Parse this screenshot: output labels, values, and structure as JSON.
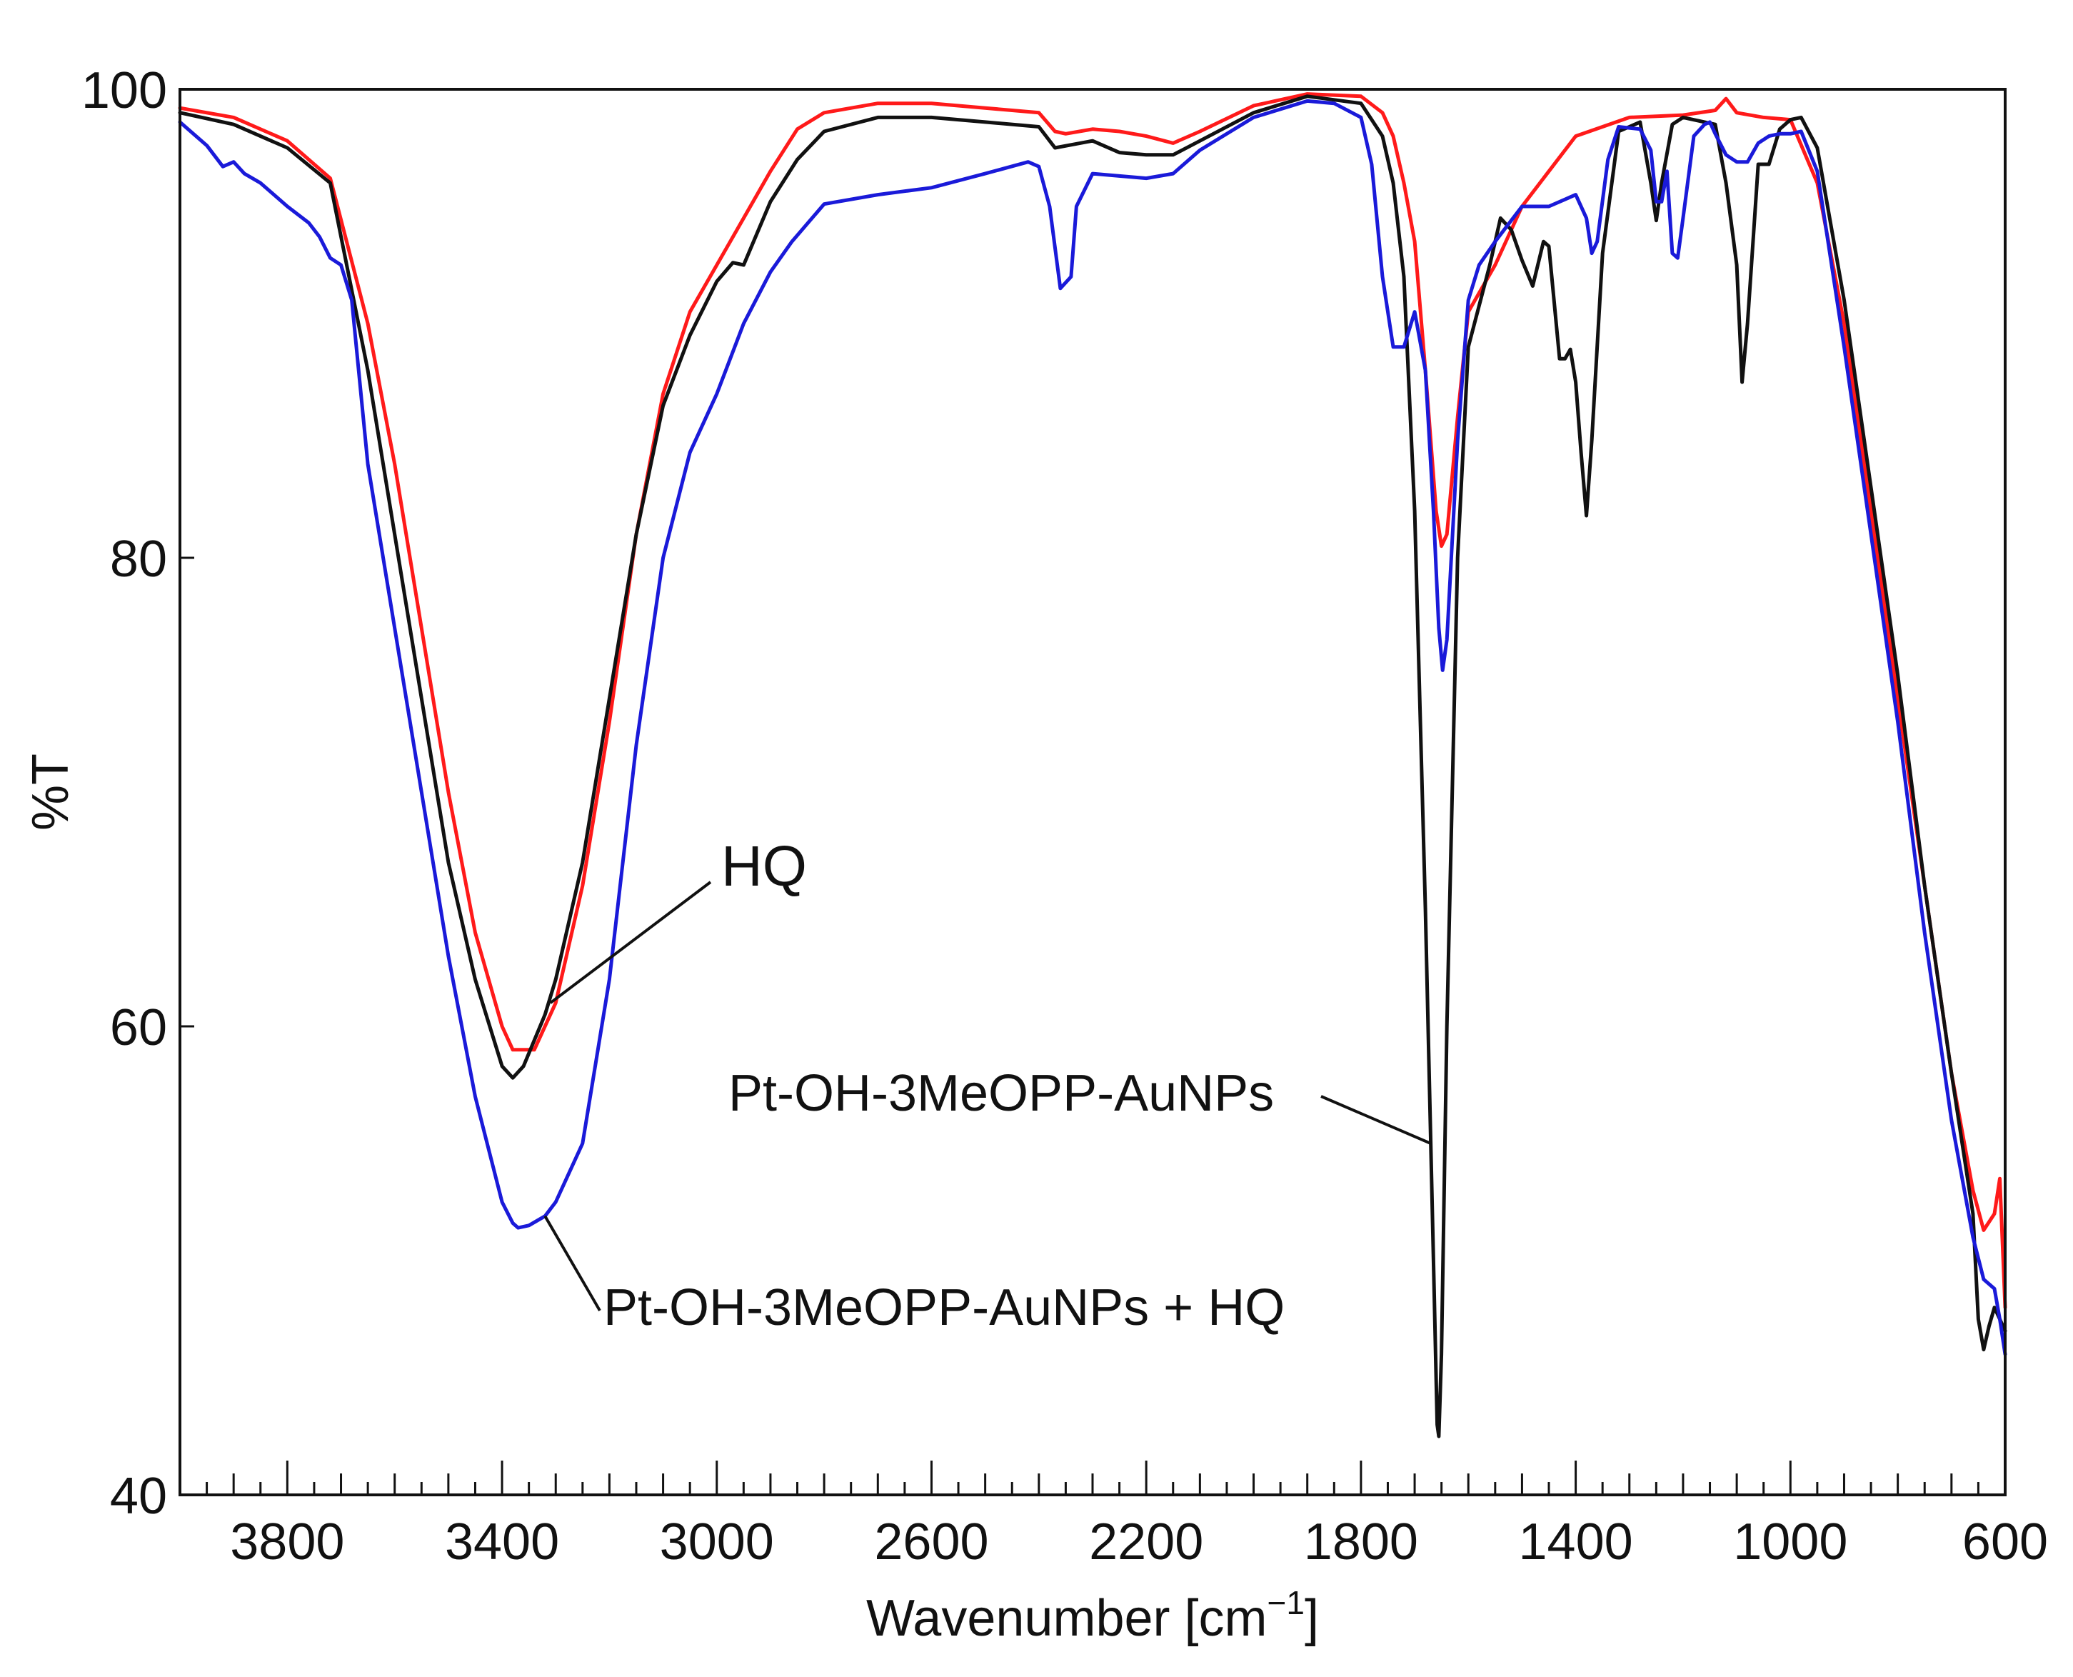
{
  "chart_data": {
    "type": "line",
    "title": "",
    "xlabel": "Wavenumber [cm",
    "xlabel_sup": "−1",
    "xlabel_close": "]",
    "ylabel": "%T",
    "xlim": [
      4000,
      600
    ],
    "ylim": [
      40,
      100
    ],
    "x_ticks": [
      3800,
      3400,
      3000,
      2600,
      2200,
      1800,
      1400,
      1000,
      600
    ],
    "y_ticks": [
      40,
      60,
      80,
      100
    ],
    "series": [
      {
        "name": "HQ",
        "color": "#ff1a1a",
        "points": [
          [
            4000,
            99.2
          ],
          [
            3900,
            98.8
          ],
          [
            3800,
            97.8
          ],
          [
            3720,
            96.2
          ],
          [
            3650,
            90
          ],
          [
            3600,
            84
          ],
          [
            3550,
            77
          ],
          [
            3500,
            70
          ],
          [
            3450,
            64
          ],
          [
            3400,
            60
          ],
          [
            3380,
            59
          ],
          [
            3340,
            59
          ],
          [
            3300,
            61
          ],
          [
            3250,
            66
          ],
          [
            3200,
            73
          ],
          [
            3150,
            81
          ],
          [
            3100,
            87
          ],
          [
            3050,
            90.5
          ],
          [
            3000,
            92.5
          ],
          [
            2950,
            94.5
          ],
          [
            2900,
            96.5
          ],
          [
            2850,
            98.3
          ],
          [
            2800,
            99
          ],
          [
            2700,
            99.4
          ],
          [
            2600,
            99.4
          ],
          [
            2500,
            99.2
          ],
          [
            2400,
            99
          ],
          [
            2370,
            98.2
          ],
          [
            2350,
            98.1
          ],
          [
            2300,
            98.3
          ],
          [
            2250,
            98.2
          ],
          [
            2200,
            98
          ],
          [
            2150,
            97.7
          ],
          [
            2100,
            98.2
          ],
          [
            2000,
            99.3
          ],
          [
            1900,
            99.8
          ],
          [
            1800,
            99.7
          ],
          [
            1760,
            99
          ],
          [
            1740,
            98
          ],
          [
            1720,
            96
          ],
          [
            1700,
            93.5
          ],
          [
            1680,
            88
          ],
          [
            1660,
            82
          ],
          [
            1650,
            80.5
          ],
          [
            1640,
            81
          ],
          [
            1620,
            86
          ],
          [
            1600,
            90.5
          ],
          [
            1550,
            92.5
          ],
          [
            1500,
            95
          ],
          [
            1450,
            96.5
          ],
          [
            1400,
            98
          ],
          [
            1300,
            98.8
          ],
          [
            1200,
            98.9
          ],
          [
            1140,
            99.1
          ],
          [
            1120,
            99.6
          ],
          [
            1100,
            99
          ],
          [
            1050,
            98.8
          ],
          [
            1000,
            98.7
          ],
          [
            950,
            96
          ],
          [
            900,
            90
          ],
          [
            850,
            82
          ],
          [
            800,
            74
          ],
          [
            750,
            66
          ],
          [
            700,
            58
          ],
          [
            660,
            53
          ],
          [
            640,
            51.3
          ],
          [
            620,
            52
          ],
          [
            610,
            53.5
          ],
          [
            600,
            48
          ]
        ]
      },
      {
        "name": "Pt-OH-3MeOPP-AuNPs",
        "color": "#111111",
        "points": [
          [
            4000,
            99
          ],
          [
            3900,
            98.5
          ],
          [
            3800,
            97.5
          ],
          [
            3720,
            96
          ],
          [
            3650,
            88
          ],
          [
            3600,
            81
          ],
          [
            3550,
            74
          ],
          [
            3500,
            67
          ],
          [
            3450,
            62
          ],
          [
            3400,
            58.3
          ],
          [
            3380,
            57.8
          ],
          [
            3360,
            58.3
          ],
          [
            3320,
            60.5
          ],
          [
            3300,
            62
          ],
          [
            3250,
            67
          ],
          [
            3200,
            74
          ],
          [
            3150,
            81
          ],
          [
            3100,
            86.5
          ],
          [
            3050,
            89.5
          ],
          [
            3000,
            91.8
          ],
          [
            2970,
            92.6
          ],
          [
            2950,
            92.5
          ],
          [
            2900,
            95.2
          ],
          [
            2850,
            97
          ],
          [
            2800,
            98.2
          ],
          [
            2700,
            98.8
          ],
          [
            2600,
            98.8
          ],
          [
            2500,
            98.6
          ],
          [
            2400,
            98.4
          ],
          [
            2370,
            97.5
          ],
          [
            2300,
            97.8
          ],
          [
            2250,
            97.3
          ],
          [
            2200,
            97.2
          ],
          [
            2150,
            97.2
          ],
          [
            2100,
            97.8
          ],
          [
            2000,
            99
          ],
          [
            1900,
            99.7
          ],
          [
            1800,
            99.4
          ],
          [
            1760,
            98
          ],
          [
            1740,
            96
          ],
          [
            1720,
            92
          ],
          [
            1700,
            82
          ],
          [
            1680,
            65
          ],
          [
            1665,
            50
          ],
          [
            1658,
            43
          ],
          [
            1655,
            42.5
          ],
          [
            1650,
            46
          ],
          [
            1640,
            60
          ],
          [
            1620,
            80
          ],
          [
            1600,
            89
          ],
          [
            1560,
            92.5
          ],
          [
            1540,
            94.5
          ],
          [
            1520,
            94
          ],
          [
            1500,
            92.7
          ],
          [
            1480,
            91.6
          ],
          [
            1460,
            93.5
          ],
          [
            1450,
            93.3
          ],
          [
            1430,
            88.5
          ],
          [
            1420,
            88.5
          ],
          [
            1410,
            88.9
          ],
          [
            1400,
            87.5
          ],
          [
            1390,
            84.5
          ],
          [
            1380,
            81.8
          ],
          [
            1370,
            85
          ],
          [
            1350,
            93
          ],
          [
            1320,
            98.2
          ],
          [
            1280,
            98.6
          ],
          [
            1260,
            96
          ],
          [
            1250,
            94.4
          ],
          [
            1240,
            96
          ],
          [
            1220,
            98.5
          ],
          [
            1200,
            98.8
          ],
          [
            1160,
            98.6
          ],
          [
            1140,
            98.5
          ],
          [
            1120,
            96
          ],
          [
            1100,
            92.5
          ],
          [
            1090,
            87.5
          ],
          [
            1080,
            90
          ],
          [
            1060,
            96.8
          ],
          [
            1040,
            96.8
          ],
          [
            1020,
            98.3
          ],
          [
            1000,
            98.7
          ],
          [
            980,
            98.8
          ],
          [
            950,
            97.5
          ],
          [
            900,
            91
          ],
          [
            850,
            83
          ],
          [
            800,
            75
          ],
          [
            750,
            66
          ],
          [
            700,
            58
          ],
          [
            660,
            52
          ],
          [
            650,
            47.5
          ],
          [
            640,
            46.2
          ],
          [
            630,
            47.2
          ],
          [
            620,
            48
          ],
          [
            610,
            47.5
          ],
          [
            600,
            47
          ]
        ]
      },
      {
        "name": "Pt-OH-3MeOPP-AuNPs + HQ",
        "color": "#1a1ad9",
        "points": [
          [
            4000,
            98.6
          ],
          [
            3950,
            97.6
          ],
          [
            3920,
            96.7
          ],
          [
            3900,
            96.9
          ],
          [
            3880,
            96.4
          ],
          [
            3850,
            96
          ],
          [
            3800,
            95
          ],
          [
            3760,
            94.3
          ],
          [
            3740,
            93.7
          ],
          [
            3720,
            92.8
          ],
          [
            3700,
            92.5
          ],
          [
            3680,
            91
          ],
          [
            3650,
            84
          ],
          [
            3600,
            77
          ],
          [
            3550,
            70
          ],
          [
            3500,
            63
          ],
          [
            3450,
            57
          ],
          [
            3400,
            52.5
          ],
          [
            3380,
            51.6
          ],
          [
            3370,
            51.4
          ],
          [
            3350,
            51.5
          ],
          [
            3320,
            51.9
          ],
          [
            3300,
            52.5
          ],
          [
            3250,
            55
          ],
          [
            3200,
            62
          ],
          [
            3150,
            72
          ],
          [
            3100,
            80
          ],
          [
            3050,
            84.5
          ],
          [
            3000,
            87
          ],
          [
            2950,
            90
          ],
          [
            2900,
            92.2
          ],
          [
            2860,
            93.5
          ],
          [
            2800,
            95.1
          ],
          [
            2700,
            95.5
          ],
          [
            2600,
            95.8
          ],
          [
            2500,
            96.4
          ],
          [
            2420,
            96.9
          ],
          [
            2400,
            96.7
          ],
          [
            2380,
            95
          ],
          [
            2360,
            91.5
          ],
          [
            2340,
            92
          ],
          [
            2330,
            95
          ],
          [
            2300,
            96.4
          ],
          [
            2200,
            96.2
          ],
          [
            2150,
            96.4
          ],
          [
            2100,
            97.4
          ],
          [
            2000,
            98.8
          ],
          [
            1900,
            99.5
          ],
          [
            1850,
            99.4
          ],
          [
            1800,
            98.8
          ],
          [
            1780,
            96.8
          ],
          [
            1760,
            92
          ],
          [
            1740,
            89
          ],
          [
            1720,
            89
          ],
          [
            1700,
            90.5
          ],
          [
            1680,
            88
          ],
          [
            1665,
            82
          ],
          [
            1655,
            77
          ],
          [
            1648,
            75.2
          ],
          [
            1640,
            76.5
          ],
          [
            1620,
            85
          ],
          [
            1600,
            91
          ],
          [
            1580,
            92.5
          ],
          [
            1550,
            93.5
          ],
          [
            1500,
            95
          ],
          [
            1450,
            95
          ],
          [
            1420,
            95.3
          ],
          [
            1400,
            95.5
          ],
          [
            1380,
            94.5
          ],
          [
            1370,
            93
          ],
          [
            1360,
            93.5
          ],
          [
            1340,
            97
          ],
          [
            1320,
            98.4
          ],
          [
            1280,
            98.3
          ],
          [
            1260,
            97.4
          ],
          [
            1250,
            95.2
          ],
          [
            1240,
            95.2
          ],
          [
            1230,
            96.5
          ],
          [
            1220,
            93
          ],
          [
            1210,
            92.8
          ],
          [
            1200,
            94.5
          ],
          [
            1180,
            98
          ],
          [
            1160,
            98.5
          ],
          [
            1150,
            98.6
          ],
          [
            1140,
            98.1
          ],
          [
            1120,
            97.2
          ],
          [
            1100,
            96.9
          ],
          [
            1080,
            96.9
          ],
          [
            1060,
            97.7
          ],
          [
            1040,
            98
          ],
          [
            1020,
            98.1
          ],
          [
            1000,
            98.1
          ],
          [
            980,
            98.2
          ],
          [
            950,
            96.5
          ],
          [
            900,
            89
          ],
          [
            850,
            81
          ],
          [
            800,
            73
          ],
          [
            750,
            64
          ],
          [
            700,
            56
          ],
          [
            660,
            51
          ],
          [
            640,
            49.2
          ],
          [
            620,
            48.8
          ],
          [
            610,
            47.5
          ],
          [
            600,
            46
          ]
        ]
      }
    ],
    "annotations": [
      {
        "text": "HQ",
        "series": "HQ"
      },
      {
        "text": "Pt-OH-3MeOPP-AuNPs",
        "series": "Pt-OH-3MeOPP-AuNPs"
      },
      {
        "text": "Pt-OH-3MeOPP-AuNPs + HQ",
        "series": "Pt-OH-3MeOPP-AuNPs + HQ"
      }
    ]
  }
}
